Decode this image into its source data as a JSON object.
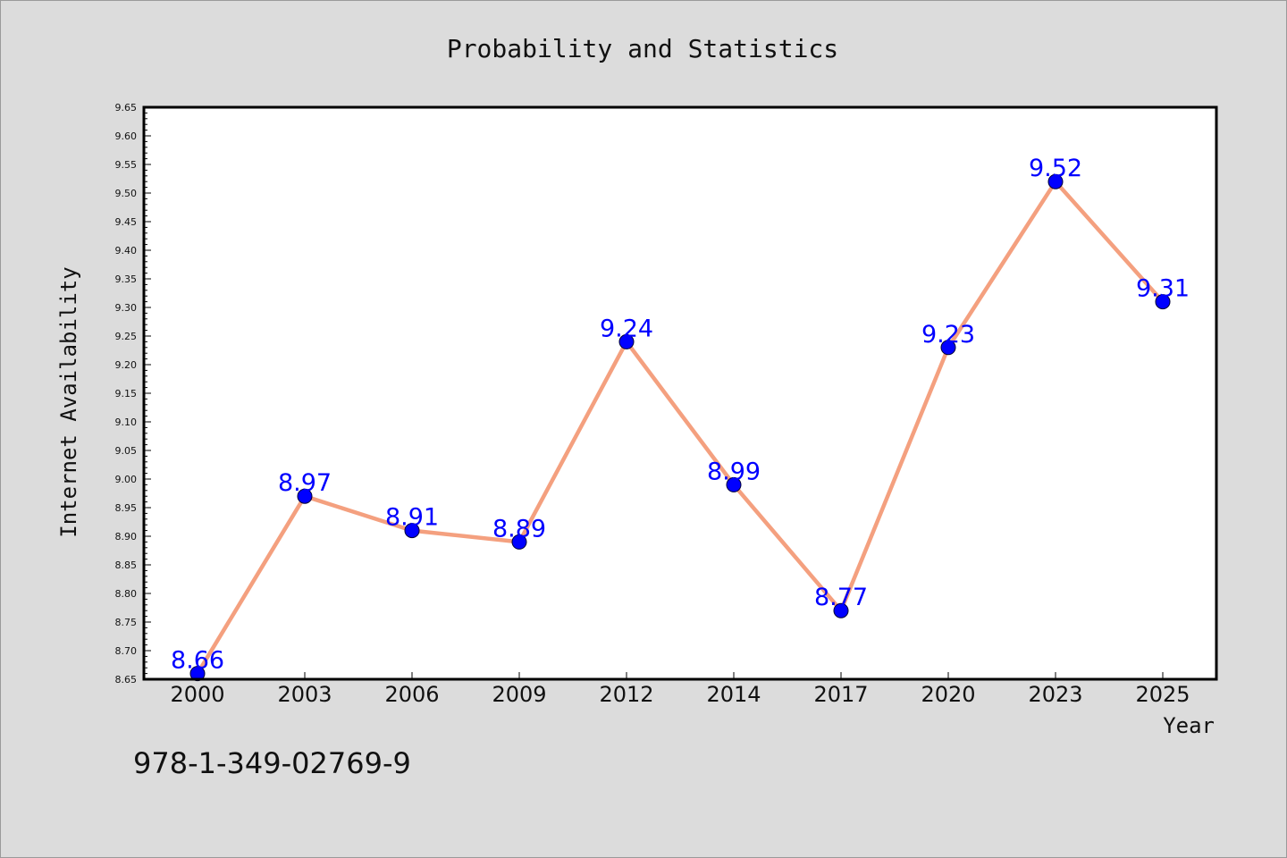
{
  "chart_data": {
    "type": "line",
    "title": "Probability and Statistics",
    "xlabel": "Year",
    "ylabel": "Internet Availability",
    "categories": [
      "2000",
      "2003",
      "2006",
      "2009",
      "2012",
      "2014",
      "2017",
      "2020",
      "2023",
      "2025"
    ],
    "series": [
      {
        "values": [
          8.66,
          8.97,
          8.91,
          8.89,
          9.24,
          8.99,
          8.77,
          9.23,
          9.52,
          9.31
        ],
        "data_labels": [
          "8.66",
          "8.97",
          "8.91",
          "8.89",
          "9.24",
          "8.99",
          "8.77",
          "9.23",
          "9.52",
          "9.31"
        ]
      }
    ],
    "ylim": [
      8.65,
      9.65
    ],
    "yticks": [
      "8.65",
      "8.70",
      "8.75",
      "8.80",
      "8.85",
      "8.90",
      "8.95",
      "9.00",
      "9.05",
      "9.10",
      "9.15",
      "9.20",
      "9.25",
      "9.30",
      "9.35",
      "9.40",
      "9.45",
      "9.50",
      "9.55",
      "9.60",
      "9.65"
    ],
    "grid": false,
    "colors": {
      "line": "#f4a07f",
      "marker": "#0000ff",
      "data_label": "#0000ff",
      "background": "#dcdcdc",
      "plot_background": "#ffffff"
    }
  },
  "footer": {
    "isbn": "978-1-349-02769-9"
  }
}
